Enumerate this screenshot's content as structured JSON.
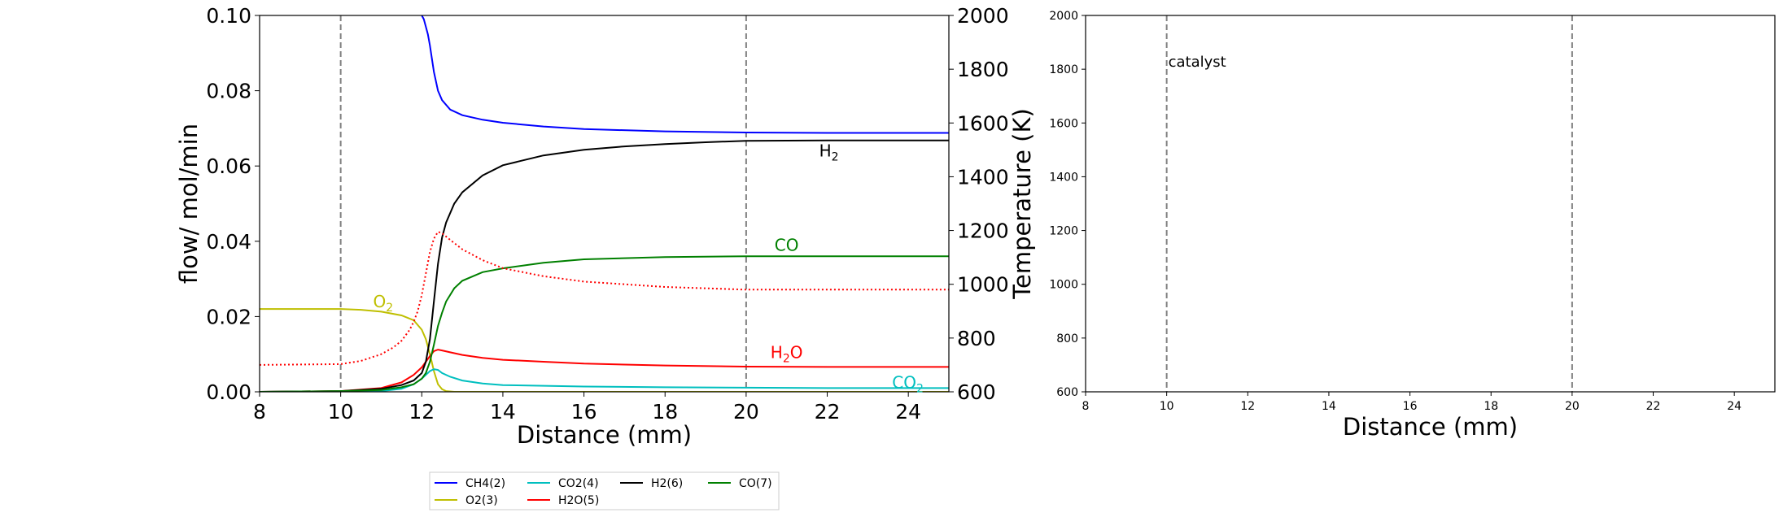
{
  "chart_data": [
    {
      "type": "line",
      "xlabel": "Distance (mm)",
      "ylabel": "flow/ mol/min",
      "y2label": "Temperature (K)",
      "xlim": [
        8,
        25
      ],
      "ylim": [
        0,
        0.1
      ],
      "y2lim": [
        600,
        2000
      ],
      "xticks": [
        "8",
        "10",
        "12",
        "14",
        "16",
        "18",
        "20",
        "22",
        "24"
      ],
      "yticks": [
        "0.00",
        "0.02",
        "0.04",
        "0.06",
        "0.08",
        "0.10"
      ],
      "y2ticks": [
        "600",
        "800",
        "1000",
        "1200",
        "1400",
        "1600",
        "1800",
        "2000"
      ],
      "vlines": [
        10,
        20
      ],
      "grid": false,
      "legend_position": "bottom-center",
      "series": [
        {
          "name": "CH4(2)",
          "color": "#0000ff",
          "x": [
            12.0,
            12.05,
            12.1,
            12.15,
            12.2,
            12.3,
            12.4,
            12.5,
            12.7,
            13.0,
            13.5,
            14,
            15,
            16,
            18,
            20,
            22,
            25
          ],
          "y": [
            0.1,
            0.099,
            0.097,
            0.095,
            0.092,
            0.085,
            0.08,
            0.0775,
            0.075,
            0.0735,
            0.0723,
            0.0715,
            0.0705,
            0.0698,
            0.0692,
            0.0689,
            0.0688,
            0.0688
          ]
        },
        {
          "name": "O2(3)",
          "color": "#bfbf00",
          "x": [
            8,
            9,
            10,
            10.5,
            11,
            11.5,
            11.8,
            12.0,
            12.1,
            12.2,
            12.3,
            12.4,
            12.5,
            12.6,
            12.8,
            13,
            14,
            25
          ],
          "y": [
            0.022,
            0.022,
            0.022,
            0.0218,
            0.0213,
            0.0203,
            0.019,
            0.0165,
            0.014,
            0.01,
            0.0055,
            0.002,
            0.0007,
            0.0002,
            0,
            0,
            0,
            0
          ]
        },
        {
          "name": "CO2(4)",
          "color": "#00bfbf",
          "x": [
            8,
            11,
            11.5,
            11.8,
            12.0,
            12.1,
            12.2,
            12.3,
            12.4,
            12.5,
            12.7,
            13,
            13.5,
            14,
            16,
            18,
            20,
            22,
            25
          ],
          "y": [
            0,
            0.0002,
            0.0008,
            0.002,
            0.0035,
            0.0045,
            0.0055,
            0.006,
            0.0058,
            0.005,
            0.004,
            0.003,
            0.0022,
            0.0018,
            0.0014,
            0.0012,
            0.0011,
            0.001,
            0.001
          ]
        },
        {
          "name": "H2O(5)",
          "color": "#ff0000",
          "x": [
            8,
            10,
            11,
            11.5,
            11.8,
            12.0,
            12.1,
            12.2,
            12.3,
            12.4,
            12.5,
            12.7,
            13,
            13.5,
            14,
            15,
            16,
            18,
            20,
            22,
            25
          ],
          "y": [
            0,
            0.0002,
            0.001,
            0.0025,
            0.0045,
            0.0065,
            0.008,
            0.0095,
            0.0108,
            0.0112,
            0.011,
            0.0105,
            0.0098,
            0.009,
            0.0085,
            0.008,
            0.0075,
            0.007,
            0.0067,
            0.0066,
            0.0066
          ]
        },
        {
          "name": "H2(6)",
          "color": "#000000",
          "x": [
            8,
            10,
            11,
            11.5,
            11.8,
            12.0,
            12.1,
            12.2,
            12.3,
            12.4,
            12.5,
            12.6,
            12.8,
            13,
            13.5,
            14,
            15,
            16,
            17,
            18,
            19,
            20,
            22,
            25
          ],
          "y": [
            0,
            0.0002,
            0.0008,
            0.0018,
            0.003,
            0.005,
            0.008,
            0.014,
            0.024,
            0.034,
            0.041,
            0.045,
            0.05,
            0.053,
            0.0575,
            0.0602,
            0.0628,
            0.0643,
            0.0652,
            0.0658,
            0.0663,
            0.0667,
            0.0668,
            0.0668
          ]
        },
        {
          "name": "CO(7)",
          "color": "#008000",
          "x": [
            8,
            10,
            11,
            11.5,
            11.8,
            12.0,
            12.1,
            12.2,
            12.3,
            12.4,
            12.5,
            12.6,
            12.8,
            13,
            13.5,
            14,
            15,
            16,
            18,
            20,
            22,
            25
          ],
          "y": [
            0,
            0.0002,
            0.0005,
            0.0012,
            0.002,
            0.0035,
            0.005,
            0.008,
            0.0125,
            0.0175,
            0.021,
            0.024,
            0.0275,
            0.0295,
            0.0318,
            0.0328,
            0.0343,
            0.0352,
            0.0358,
            0.036,
            0.036,
            0.036
          ]
        }
      ],
      "temperature_series": {
        "color": "#ff0000",
        "style": "dotted",
        "x": [
          8,
          10,
          10.5,
          11,
          11.3,
          11.5,
          11.7,
          11.8,
          11.9,
          12.0,
          12.1,
          12.2,
          12.3,
          12.4,
          12.5,
          12.7,
          13,
          13.5,
          14,
          15,
          16,
          18,
          20,
          22,
          25
        ],
        "y": [
          700,
          703,
          715,
          740,
          765,
          790,
          830,
          860,
          900,
          960,
          1040,
          1120,
          1170,
          1195,
          1190,
          1165,
          1130,
          1090,
          1060,
          1030,
          1010,
          990,
          980,
          980,
          980
        ]
      },
      "annotations": [
        {
          "label": "H",
          "sub": "2",
          "color": "#000000",
          "x": 21.8,
          "y": 0.0625
        },
        {
          "label": "CO",
          "sub": "",
          "color": "#008000",
          "x": 20.7,
          "y": 0.0375
        },
        {
          "label": "O",
          "sub": "2",
          "color": "#bfbf00",
          "x": 10.8,
          "y": 0.0225
        },
        {
          "label": "H",
          "sub": "2",
          "label2": "O",
          "color": "#ff0000",
          "x": 20.6,
          "y": 0.009
        },
        {
          "label": "CO",
          "sub": "2",
          "color": "#00bfbf",
          "x": 23.6,
          "y": 0.001
        }
      ]
    },
    {
      "type": "line",
      "xlabel": "Distance (mm)",
      "xlim": [
        8,
        25
      ],
      "ylim": [
        600,
        2000
      ],
      "xticks": [
        "8",
        "10",
        "12",
        "14",
        "16",
        "18",
        "20",
        "22",
        "24"
      ],
      "yticks": [
        "600",
        "800",
        "1000",
        "1200",
        "1400",
        "1600",
        "1800",
        "2000"
      ],
      "vlines": [
        10,
        20
      ],
      "grid": false,
      "annotation": "catalyst",
      "series": []
    }
  ]
}
